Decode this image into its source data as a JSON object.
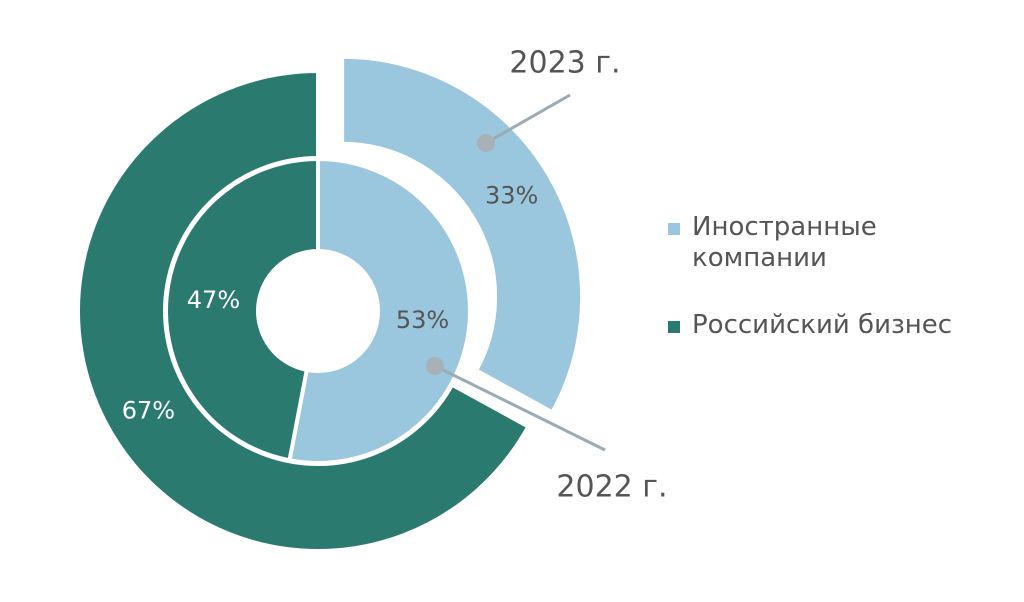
{
  "chart_data": {
    "type": "donut",
    "categories": [
      "Иностранные компании",
      "Российский бизнес"
    ],
    "colors": [
      "#9bc7de",
      "#2b7a70"
    ],
    "series": [
      {
        "name": "2023 г.",
        "values": [
          33,
          67
        ],
        "value_labels": [
          "33%",
          "67%"
        ]
      },
      {
        "name": "2022 г.",
        "values": [
          53,
          47
        ],
        "value_labels": [
          "53%",
          "47%"
        ]
      }
    ]
  }
}
